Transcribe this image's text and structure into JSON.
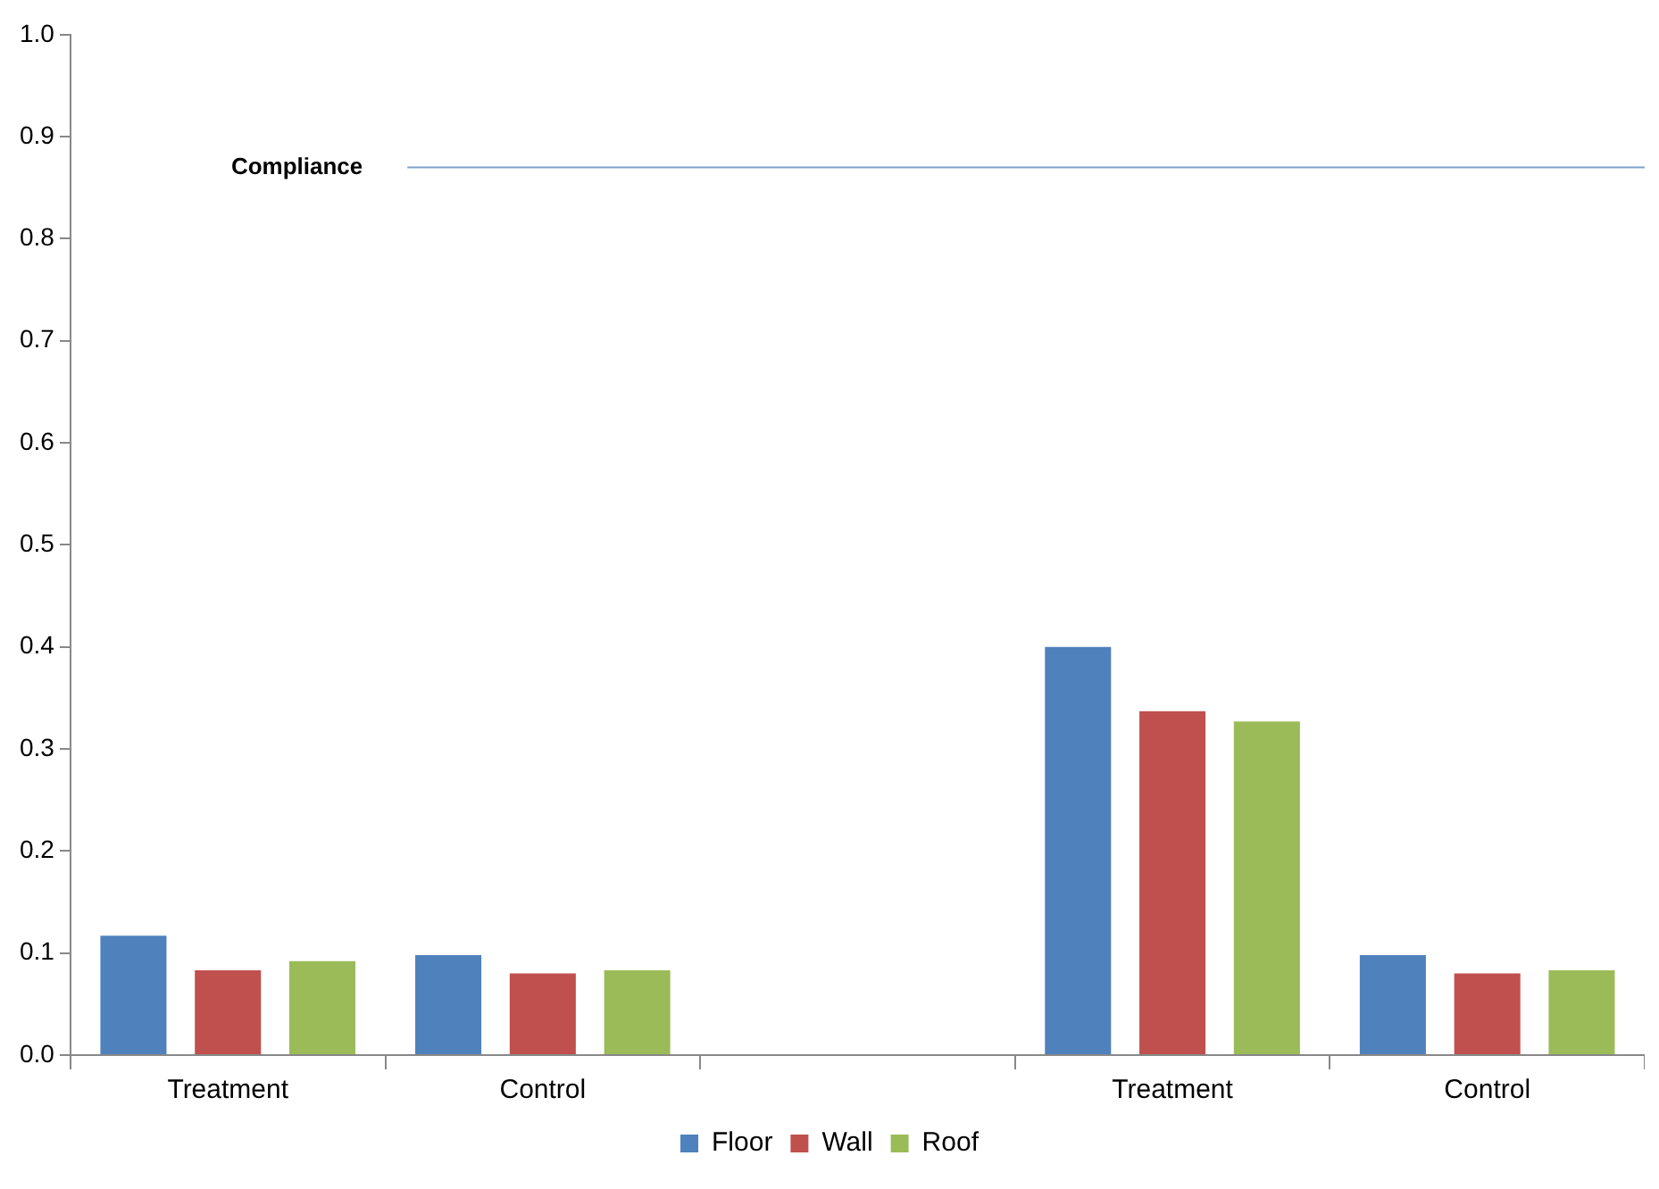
{
  "chart_data": {
    "type": "bar",
    "categories": [
      "Treatment",
      "Control",
      null,
      "Treatment",
      "Control"
    ],
    "series": [
      {
        "name": "Floor",
        "color": "#4f81bd",
        "values": [
          0.117,
          0.098,
          null,
          0.4,
          0.098
        ]
      },
      {
        "name": "Wall",
        "color": "#c0504d",
        "values": [
          0.083,
          0.08,
          null,
          0.337,
          0.08
        ]
      },
      {
        "name": "Roof",
        "color": "#9bbb59",
        "values": [
          0.092,
          0.083,
          null,
          0.327,
          0.083
        ]
      }
    ],
    "ylim": [
      0,
      1
    ],
    "yticks": [
      {
        "value": 0,
        "label": "0.0"
      },
      {
        "value": 0.1,
        "label": "0.1"
      },
      {
        "value": 0.2,
        "label": "0.2"
      },
      {
        "value": 0.3,
        "label": "0.3"
      },
      {
        "value": 0.4,
        "label": "0.4"
      },
      {
        "value": 0.5,
        "label": "0.5"
      },
      {
        "value": 0.6,
        "label": "0.6"
      },
      {
        "value": 0.7,
        "label": "0.7"
      },
      {
        "value": 0.8,
        "label": "0.8"
      },
      {
        "value": 0.9,
        "label": "0.9"
      },
      {
        "value": 1,
        "label": "1.0"
      }
    ],
    "ref_lines": [
      {
        "axis": "y",
        "value": 0.87,
        "label": "Compliance",
        "color": "#7fa1c9"
      }
    ],
    "grid": false,
    "legend": "bottom"
  }
}
